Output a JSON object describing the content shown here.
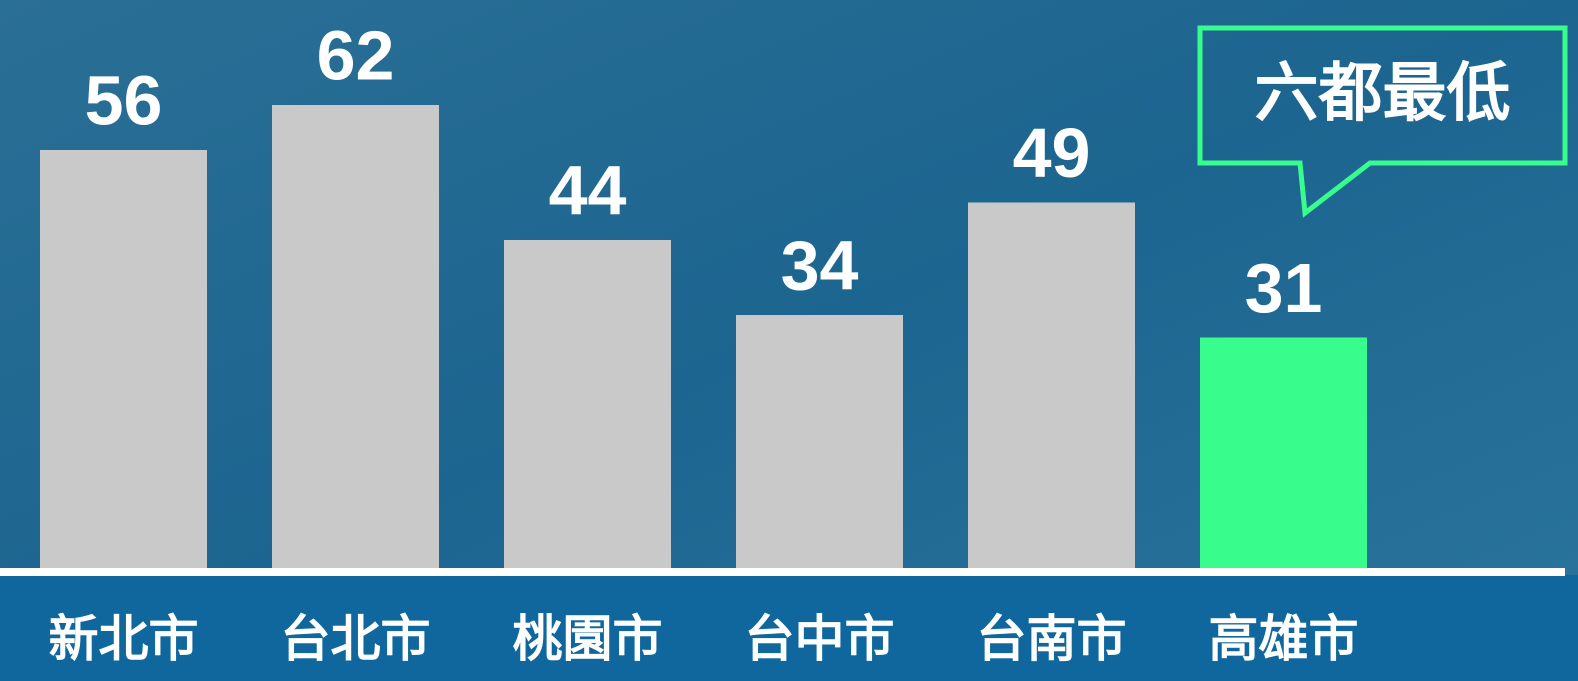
{
  "chart_data": {
    "type": "bar",
    "categories": [
      "新北市",
      "台北市",
      "桃園市",
      "台中市",
      "台南市",
      "高雄市"
    ],
    "values": [
      56,
      62,
      44,
      34,
      49,
      31
    ],
    "colors": [
      "#c8c9c8",
      "#c8c9c8",
      "#c8c9c8",
      "#c8c9c8",
      "#c8c9c8",
      "#38fd8c"
    ],
    "ylim": [
      0,
      76
    ],
    "annotation": {
      "text": "六都最低",
      "category_index": 5,
      "color": "#38fd8c"
    }
  }
}
